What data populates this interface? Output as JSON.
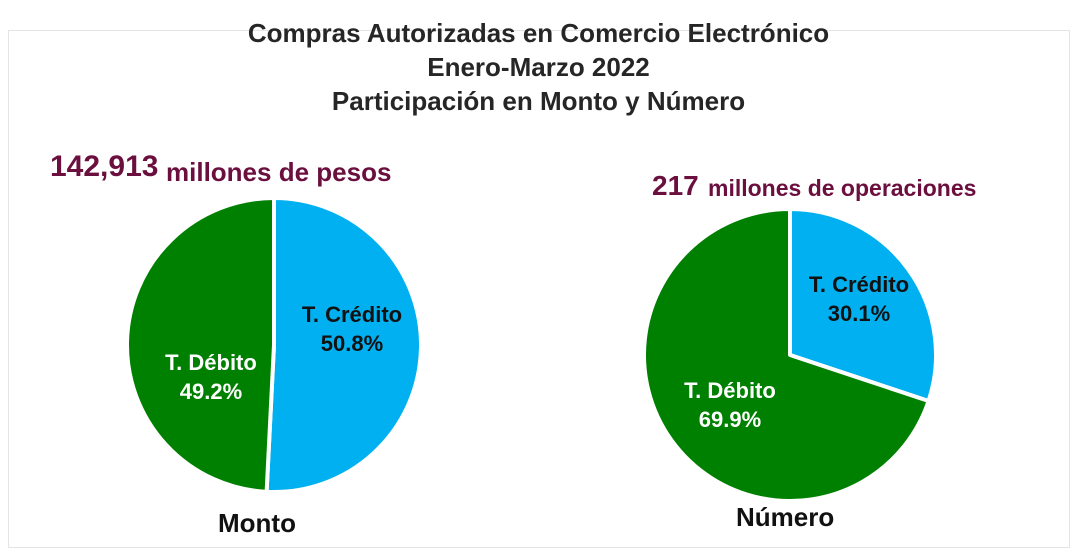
{
  "title": {
    "line1": "Compras Autorizadas en Comercio Electrónico",
    "line2": "Enero-Marzo 2022",
    "line3": "Participación en Monto y Número"
  },
  "monto": {
    "total": "142,913",
    "unit": "millones de pesos",
    "caption": "Monto"
  },
  "numero": {
    "total": "217",
    "unit": "millones de operaciones",
    "caption": "Número"
  },
  "colors": {
    "credito": "#00b0f0",
    "debito": "#008000",
    "accent": "#6b0f3f"
  },
  "chart_data": [
    {
      "type": "pie",
      "title": "Monto",
      "slices": [
        {
          "label": "T. Crédito",
          "value": 50.8,
          "display": "50.8%",
          "color": "#00b0f0",
          "text_color": "#111111"
        },
        {
          "label": "T. Débito",
          "value": 49.2,
          "display": "49.2%",
          "color": "#008000",
          "text_color": "#ffffff"
        }
      ]
    },
    {
      "type": "pie",
      "title": "Número",
      "slices": [
        {
          "label": "T. Crédito",
          "value": 30.1,
          "display": "30.1%",
          "color": "#00b0f0",
          "text_color": "#111111"
        },
        {
          "label": "T. Débito",
          "value": 69.9,
          "display": "69.9%",
          "color": "#008000",
          "text_color": "#ffffff"
        }
      ]
    }
  ]
}
